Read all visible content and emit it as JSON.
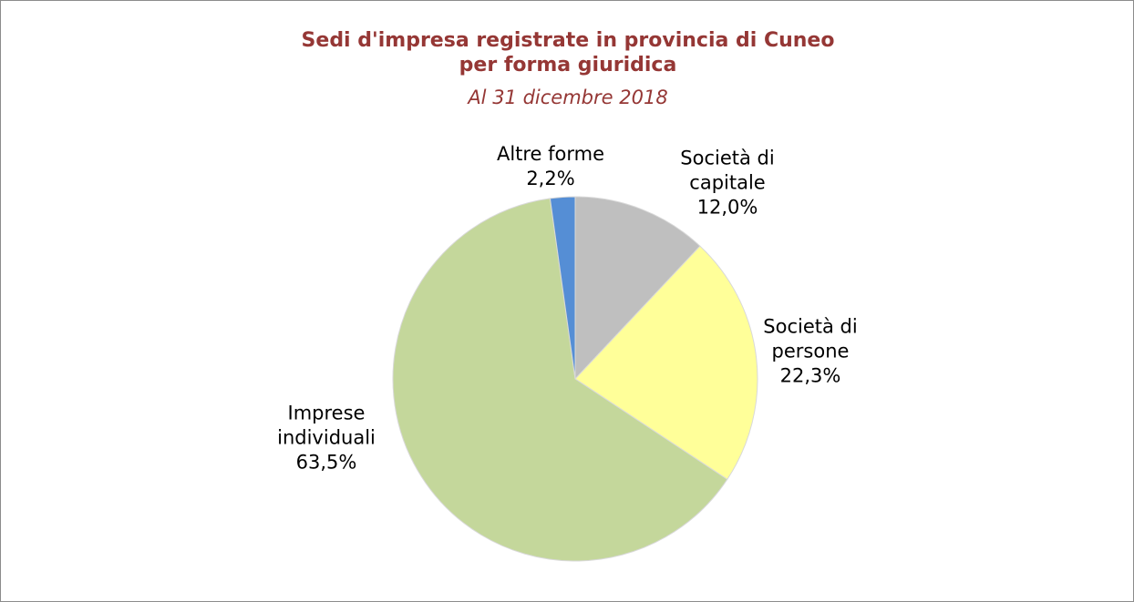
{
  "chart_data": {
    "type": "pie",
    "title": "Sedi d'impresa registrate in provincia di Cuneo per forma giuridica",
    "subtitle": "Al 31 dicembre 2018",
    "categories": [
      "Società di capitale",
      "Società di persone",
      "Imprese individuali",
      "Altre forme"
    ],
    "values": [
      12.0,
      22.3,
      63.5,
      2.2
    ],
    "value_labels": [
      "12,0%",
      "22,3%",
      "63,5%",
      "2,2%"
    ],
    "colors": [
      "#bfbfbf",
      "#ffff99",
      "#c4d79b",
      "#558ed5"
    ]
  }
}
